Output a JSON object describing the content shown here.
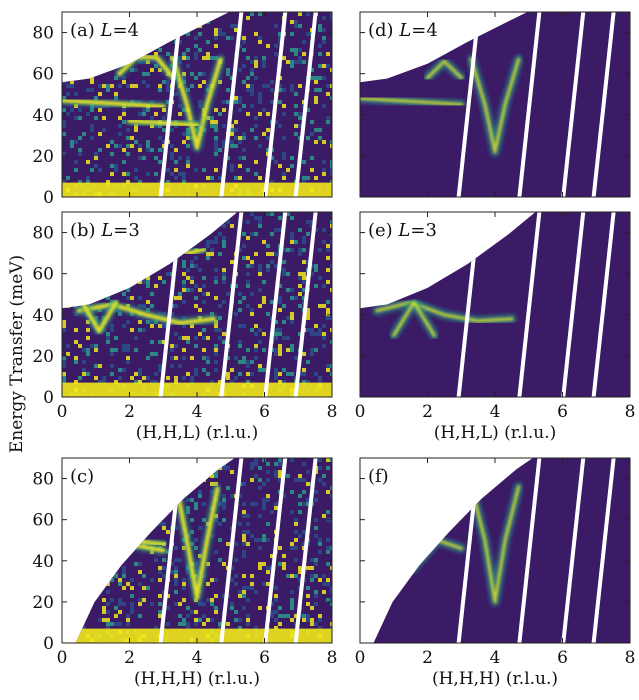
{
  "figure": {
    "ylabel": "Energy Transfer (meV)",
    "colors": {
      "background_map": "#3b1a66",
      "mask": "#ffffff",
      "high_intensity": "#f2e81a",
      "mid_intensity": "#2a9a8a",
      "low_intensity": "#2e4f8c"
    }
  },
  "chart_data": [
    {
      "type": "heatmap",
      "panel": "(a)",
      "condition": "L=4",
      "source": "experiment",
      "label_prefix": "(a)",
      "label_var": "L",
      "label_val": "4",
      "xlabel": "",
      "ylabel": "Energy Transfer (meV)",
      "xlim": [
        0,
        8
      ],
      "ylim": [
        0,
        90
      ],
      "xticks": [],
      "yticks": [
        "0",
        "20",
        "40",
        "60",
        "80"
      ],
      "branches": [
        {
          "name": "flat band",
          "points": [
            [
              0,
              47
            ],
            [
              1,
              46
            ],
            [
              2,
              45
            ],
            [
              3,
              44
            ]
          ]
        },
        {
          "name": "V dispersion",
          "points": [
            [
              3.3,
              67
            ],
            [
              3.7,
              45
            ],
            [
              4,
              24
            ],
            [
              4.3,
              45
            ],
            [
              4.7,
              67
            ]
          ]
        },
        {
          "name": "arc",
          "points": [
            [
              1.7,
              60
            ],
            [
              2.2,
              68
            ],
            [
              2.8,
              68
            ],
            [
              3.3,
              58
            ]
          ]
        },
        {
          "name": "lower band",
          "points": [
            [
              2,
              37
            ],
            [
              3,
              36
            ],
            [
              4,
              35
            ]
          ]
        }
      ]
    },
    {
      "type": "heatmap",
      "panel": "(d)",
      "condition": "L=4",
      "source": "simulation",
      "label_prefix": "(d)",
      "label_var": "L",
      "label_val": "4",
      "xlabel": "",
      "ylabel": "",
      "xlim": [
        0,
        8
      ],
      "ylim": [
        0,
        90
      ],
      "xticks": [],
      "yticks": [],
      "branches": [
        {
          "name": "flat band",
          "points": [
            [
              0,
              48
            ],
            [
              1,
              47
            ],
            [
              2,
              46
            ],
            [
              3,
              45
            ]
          ]
        },
        {
          "name": "V dispersion",
          "points": [
            [
              3.3,
              67
            ],
            [
              3.7,
              45
            ],
            [
              4,
              22
            ],
            [
              4.3,
              45
            ],
            [
              4.7,
              67
            ]
          ]
        },
        {
          "name": "arc",
          "points": [
            [
              2,
              58
            ],
            [
              2.5,
              66
            ],
            [
              3,
              58
            ]
          ]
        }
      ]
    },
    {
      "type": "heatmap",
      "panel": "(b)",
      "condition": "L=3",
      "source": "experiment",
      "label_prefix": "(b)",
      "label_var": "L",
      "label_val": "3",
      "xlabel": "(H,H,L) (r.l.u.)",
      "ylabel": "",
      "xlim": [
        0,
        8
      ],
      "ylim": [
        0,
        90
      ],
      "xticks": [
        "0",
        "2",
        "4",
        "6",
        "8"
      ],
      "yticks": [
        "0",
        "20",
        "40",
        "60",
        "80"
      ],
      "branches": [
        {
          "name": "lower band",
          "points": [
            [
              0.5,
              42
            ],
            [
              1.5,
              45
            ],
            [
              2.5,
              40
            ],
            [
              3.5,
              36
            ],
            [
              4.5,
              38
            ]
          ]
        },
        {
          "name": "V dispersion",
          "points": [
            [
              0.6,
              46
            ],
            [
              1.1,
              32
            ],
            [
              1.6,
              46
            ]
          ]
        },
        {
          "name": "upper",
          "points": [
            [
              3.4,
              72
            ],
            [
              3.8,
              70
            ],
            [
              4.2,
              72
            ]
          ]
        }
      ]
    },
    {
      "type": "heatmap",
      "panel": "(e)",
      "condition": "L=3",
      "source": "simulation",
      "label_prefix": "(e)",
      "label_var": "L",
      "label_val": "3",
      "xlabel": "(H,H,L) (r.l.u.)",
      "ylabel": "",
      "xlim": [
        0,
        8
      ],
      "ylim": [
        0,
        90
      ],
      "xticks": [
        "0",
        "2",
        "4",
        "6",
        "8"
      ],
      "yticks": [],
      "branches": [
        {
          "name": "lower band",
          "points": [
            [
              0.5,
              42
            ],
            [
              1.5,
              46
            ],
            [
              2.5,
              40
            ],
            [
              3.5,
              37
            ],
            [
              4.5,
              38
            ]
          ]
        },
        {
          "name": "V dispersion",
          "points": [
            [
              1,
              30
            ],
            [
              1.6,
              46
            ],
            [
              2.2,
              30
            ]
          ]
        },
        {
          "name": "upper",
          "points": [
            [
              3.6,
              80
            ],
            [
              4,
              76
            ]
          ]
        }
      ]
    },
    {
      "type": "heatmap",
      "panel": "(c)",
      "condition": "",
      "source": "experiment",
      "label_prefix": "(c)",
      "label_var": "",
      "label_val": "",
      "xlabel": "(H,H,H) (r.l.u.)",
      "ylabel": "",
      "xlim": [
        0,
        8
      ],
      "ylim": [
        0,
        90
      ],
      "xticks": [
        "0",
        "2",
        "4",
        "6",
        "8"
      ],
      "yticks": [
        "0",
        "20",
        "40",
        "60",
        "80"
      ],
      "branches": [
        {
          "name": "V dispersion",
          "points": [
            [
              3.4,
              75
            ],
            [
              3.7,
              50
            ],
            [
              4,
              22
            ],
            [
              4.3,
              50
            ],
            [
              4.6,
              75
            ]
          ]
        },
        {
          "name": "lower",
          "points": [
            [
              1,
              33
            ],
            [
              2,
              48
            ],
            [
              3,
              45
            ]
          ]
        },
        {
          "name": "upper",
          "points": [
            [
              2,
              50
            ],
            [
              3,
              48
            ]
          ]
        }
      ]
    },
    {
      "type": "heatmap",
      "panel": "(f)",
      "condition": "",
      "source": "simulation",
      "label_prefix": "(f)",
      "label_var": "",
      "label_val": "",
      "xlabel": "(H,H,H) (r.l.u.)",
      "ylabel": "",
      "xlim": [
        0,
        8
      ],
      "ylim": [
        0,
        90
      ],
      "xticks": [
        "0",
        "2",
        "4",
        "6",
        "8"
      ],
      "yticks": [],
      "branches": [
        {
          "name": "V dispersion",
          "points": [
            [
              3.3,
              76
            ],
            [
              3.7,
              50
            ],
            [
              4,
              20
            ],
            [
              4.3,
              50
            ],
            [
              4.7,
              76
            ]
          ]
        },
        {
          "name": "lower",
          "points": [
            [
              1.5,
              35
            ],
            [
              2.3,
              50
            ],
            [
              3,
              46
            ]
          ]
        }
      ]
    }
  ]
}
